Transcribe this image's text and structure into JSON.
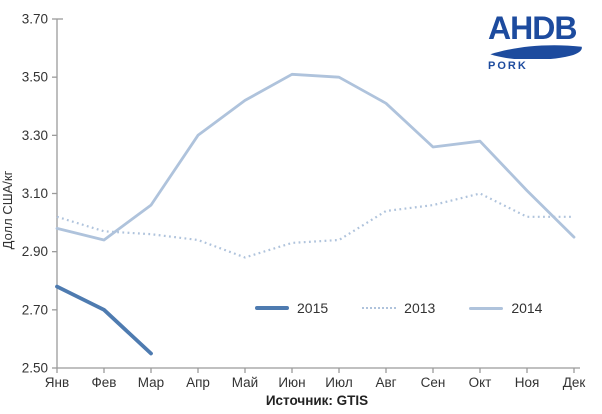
{
  "chart_data": {
    "type": "line",
    "title": "",
    "xlabel": "",
    "ylabel": "Долл США/кг",
    "ylim": [
      2.5,
      3.7
    ],
    "y_tick_step": 0.2,
    "y_tick_labels": [
      "2.50",
      "2.70",
      "2.90",
      "3.10",
      "3.30",
      "3.50",
      "3.70"
    ],
    "grid": false,
    "legend_position": "inside-bottom-center",
    "categories": [
      "Янв",
      "Фев",
      "Мар",
      "Апр",
      "Май",
      "Июн",
      "Июл",
      "Авг",
      "Сен",
      "Окт",
      "Ноя",
      "Дек"
    ],
    "series": [
      {
        "name": "2015",
        "style": "solid-thick",
        "color": "#4E7BB0",
        "values": [
          2.78,
          2.7,
          2.55
        ]
      },
      {
        "name": "2013",
        "style": "dotted",
        "color": "#AFC3DC",
        "values": [
          3.02,
          2.97,
          2.96,
          2.94,
          2.88,
          2.93,
          2.94,
          3.04,
          3.06,
          3.1,
          3.02,
          3.02
        ]
      },
      {
        "name": "2014",
        "style": "solid",
        "color": "#AFC3DC",
        "values": [
          2.98,
          2.94,
          3.06,
          3.3,
          3.42,
          3.51,
          3.5,
          3.41,
          3.26,
          3.28,
          3.11,
          2.95
        ]
      }
    ]
  },
  "logo": {
    "brand": "AHDB",
    "sub": "PORK",
    "color": "#1D4B9E"
  },
  "source_label": "Источник: GTIS",
  "colors": {
    "brand_blue": "#1D4B9E",
    "series_dark_blue": "#4E7BB0",
    "series_light_blue": "#AFC3DC",
    "axis_gray": "#9B9B9B",
    "label_text": "#333333"
  }
}
